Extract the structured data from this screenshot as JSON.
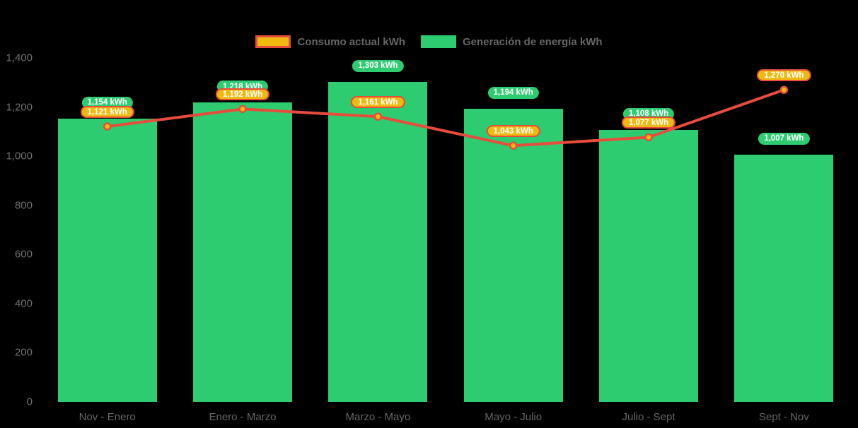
{
  "chart_data": {
    "type": "bar",
    "title": "",
    "categories": [
      "Nov - Enero",
      "Enero - Marzo",
      "Marzo - Mayo",
      "Mayo - Julio",
      "Julio - Sept",
      "Sept - Nov"
    ],
    "series": [
      {
        "name": "Consumo actual kWh",
        "type": "line",
        "values": [
          1121,
          1192,
          1161,
          1043,
          1077,
          1270
        ],
        "value_labels": [
          "1,121 kWh",
          "1,192 kWh",
          "1,161 kWh",
          "1,043 kWh",
          "1,077 kWh",
          "1,270 kWh"
        ],
        "line_color": "#e74c3c",
        "point_fill": "#eeba10",
        "point_border": "#e74c3c",
        "label_fill": "#eeba10",
        "label_border": "#e74c3c"
      },
      {
        "name": "Generación de energía kWh",
        "type": "bar",
        "values": [
          1154,
          1218,
          1303,
          1194,
          1108,
          1007
        ],
        "value_labels": [
          "1,154 kWh",
          "1,218 kWh",
          "1,303 kWh",
          "1,194 kWh",
          "1,108 kWh",
          "1,007 kWh"
        ],
        "color": "#2ecc71",
        "label_fill": "#2ecc71"
      }
    ],
    "xlabel": "",
    "ylabel": "",
    "ylim": [
      0,
      1400
    ],
    "y_ticks": [
      "0",
      "200",
      "400",
      "600",
      "800",
      "1,000",
      "1,200",
      "1,400"
    ],
    "grid": false,
    "legend_position": "top",
    "background": "#000000"
  }
}
